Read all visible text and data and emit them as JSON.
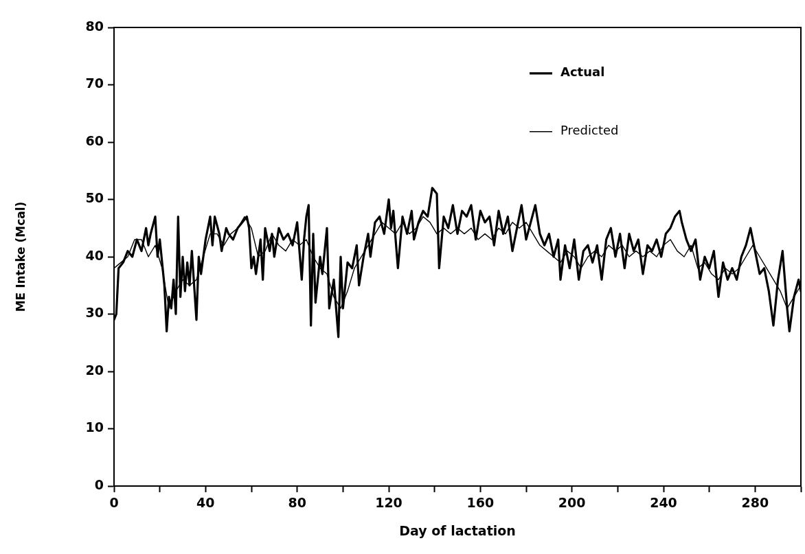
{
  "chart_data": {
    "type": "line",
    "xlabel": "Day of lactation",
    "ylabel": "ME Intake (Mcal)",
    "xlim": [
      0,
      300
    ],
    "xticks": [
      0,
      {
        "value": 20,
        "label": null
      },
      40,
      {
        "value": 60,
        "label": null
      },
      80,
      {
        "value": 100,
        "label": null
      },
      120,
      {
        "value": 140,
        "label": null
      },
      160,
      {
        "value": 180,
        "label": null
      },
      200,
      {
        "value": 220,
        "label": null
      },
      240,
      {
        "value": 260,
        "label": null
      },
      280,
      {
        "value": 300,
        "label": null
      }
    ],
    "ylim": [
      0,
      80
    ],
    "yticks": [
      0,
      10,
      20,
      30,
      40,
      50,
      60,
      70,
      80
    ],
    "grid": false,
    "legend": "top right",
    "marker": "none",
    "line_style": "solid",
    "series": [
      {
        "name": "Actual",
        "color": "#000000",
        "x": [
          0,
          1,
          2,
          4,
          6,
          8,
          10,
          12,
          14,
          15,
          16,
          18,
          19,
          20,
          22,
          23,
          24,
          25,
          26,
          27,
          28,
          29,
          30,
          31,
          32,
          33,
          34,
          36,
          37,
          38,
          40,
          42,
          43,
          44,
          46,
          47,
          49,
          50,
          52,
          54,
          56,
          58,
          59,
          60,
          61,
          62,
          64,
          65,
          66,
          68,
          69,
          70,
          72,
          74,
          76,
          78,
          80,
          82,
          83,
          84,
          85,
          86,
          87,
          88,
          90,
          91,
          93,
          94,
          96,
          98,
          99,
          100,
          102,
          104,
          106,
          107,
          109,
          111,
          112,
          114,
          116,
          118,
          120,
          121,
          122,
          124,
          126,
          128,
          130,
          131,
          133,
          135,
          137,
          139,
          141,
          142,
          144,
          146,
          148,
          150,
          152,
          154,
          156,
          158,
          160,
          162,
          164,
          166,
          168,
          170,
          172,
          174,
          176,
          178,
          180,
          182,
          184,
          186,
          188,
          190,
          192,
          194,
          195,
          197,
          199,
          201,
          203,
          205,
          207,
          209,
          211,
          213,
          215,
          217,
          219,
          221,
          223,
          225,
          227,
          229,
          231,
          233,
          235,
          237,
          239,
          241,
          243,
          245,
          247,
          248,
          250,
          252,
          254,
          256,
          258,
          260,
          262,
          264,
          266,
          268,
          270,
          272,
          274,
          276,
          278,
          280,
          282,
          284,
          286,
          288,
          290,
          292,
          294,
          295,
          297,
          299,
          300
        ],
        "values": [
          29,
          30,
          38,
          39,
          41,
          40,
          43,
          41,
          45,
          42,
          44,
          47,
          40,
          43,
          35,
          27,
          33,
          31,
          36,
          30,
          47,
          33,
          40,
          34,
          39,
          35,
          41,
          29,
          40,
          37,
          43,
          47,
          42,
          47,
          44,
          41,
          45,
          44,
          43,
          45,
          46,
          47,
          45,
          38,
          40,
          37,
          43,
          36,
          45,
          41,
          44,
          40,
          45,
          43,
          44,
          42,
          46,
          36,
          43,
          47,
          49,
          28,
          44,
          32,
          40,
          37,
          45,
          31,
          36,
          26,
          40,
          31,
          39,
          38,
          42,
          35,
          40,
          44,
          40,
          46,
          47,
          44,
          50,
          45,
          48,
          38,
          47,
          44,
          48,
          43,
          46,
          48,
          47,
          52,
          51,
          38,
          47,
          45,
          49,
          44,
          48,
          47,
          49,
          43,
          48,
          46,
          47,
          42,
          48,
          44,
          47,
          41,
          45,
          49,
          43,
          46,
          49,
          44,
          42,
          44,
          40,
          43,
          36,
          42,
          38,
          43,
          36,
          41,
          42,
          39,
          42,
          36,
          43,
          45,
          40,
          44,
          38,
          44,
          41,
          43,
          37,
          42,
          41,
          43,
          40,
          44,
          45,
          47,
          48,
          46,
          43,
          41,
          43,
          36,
          40,
          38,
          41,
          33,
          39,
          36,
          38,
          36,
          40,
          42,
          45,
          41,
          37,
          38,
          34,
          28,
          36,
          41,
          31,
          27,
          33,
          36,
          34
        ]
      },
      {
        "name": "Predicted",
        "color": "#000000",
        "x": [
          0,
          3,
          6,
          9,
          12,
          15,
          18,
          21,
          24,
          27,
          30,
          33,
          36,
          39,
          42,
          45,
          48,
          51,
          54,
          57,
          60,
          63,
          66,
          69,
          72,
          75,
          78,
          81,
          84,
          87,
          90,
          93,
          96,
          99,
          102,
          105,
          108,
          111,
          114,
          117,
          120,
          123,
          126,
          129,
          132,
          135,
          138,
          141,
          144,
          147,
          150,
          153,
          156,
          159,
          162,
          165,
          168,
          171,
          174,
          177,
          180,
          183,
          186,
          189,
          192,
          195,
          198,
          201,
          204,
          207,
          210,
          213,
          216,
          219,
          222,
          225,
          228,
          231,
          234,
          237,
          240,
          243,
          246,
          249,
          252,
          255,
          258,
          261,
          264,
          267,
          270,
          273,
          276,
          279,
          282,
          285,
          288,
          291,
          294,
          297,
          300
        ],
        "values": [
          38,
          39,
          40,
          43,
          43,
          40,
          42,
          38,
          31,
          34,
          36,
          35,
          36,
          40,
          44,
          44,
          42,
          44,
          45,
          47,
          45,
          40,
          41,
          44,
          42,
          41,
          43,
          42,
          43,
          40,
          38,
          37,
          33,
          31,
          34,
          38,
          40,
          42,
          44,
          46,
          45,
          44,
          46,
          44,
          45,
          47,
          46,
          44,
          45,
          44,
          45,
          44,
          45,
          43,
          44,
          43,
          45,
          44,
          46,
          45,
          46,
          44,
          42,
          41,
          40,
          39,
          41,
          40,
          38,
          40,
          41,
          40,
          42,
          41,
          42,
          40,
          41,
          40,
          41,
          40,
          42,
          43,
          41,
          40,
          42,
          38,
          39,
          37,
          36,
          38,
          37,
          38,
          40,
          42,
          40,
          38,
          36,
          34,
          31,
          33,
          35
        ]
      }
    ]
  }
}
